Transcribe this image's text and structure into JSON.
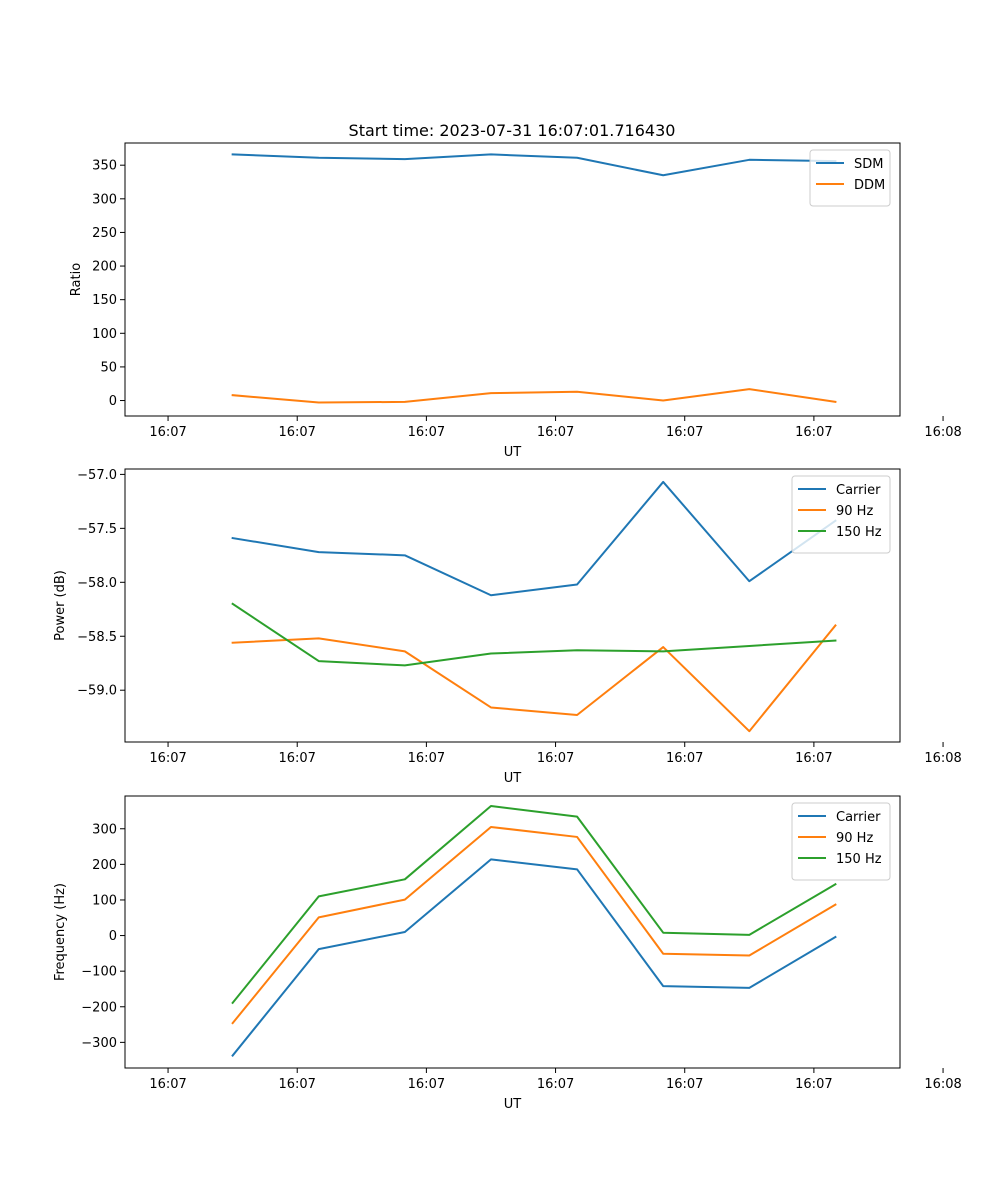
{
  "figure": {
    "title": "Start time: 2023-07-31 16:07:01.716430"
  },
  "chart_data": [
    {
      "type": "line",
      "title": "Start time: 2023-07-31 16:07:01.716430",
      "xlabel": "UT",
      "ylabel": "Ratio",
      "xlim": [
        -1,
        17
      ],
      "ylim": [
        -23,
        383
      ],
      "x": [
        1.5,
        3.5,
        5.5,
        7.5,
        9.5,
        11.5,
        13.5,
        15.5
      ],
      "xticks": [
        0,
        3,
        6,
        9,
        12,
        15,
        18
      ],
      "xtick_labels": [
        "16:07",
        "16:07",
        "16:07",
        "16:07",
        "16:07",
        "16:07",
        "16:08"
      ],
      "yticks": [
        0,
        50,
        100,
        150,
        200,
        250,
        300,
        350
      ],
      "ytick_labels": [
        "0",
        "50",
        "100",
        "150",
        "200",
        "250",
        "300",
        "350"
      ],
      "legend": "top-right",
      "series": [
        {
          "name": "SDM",
          "color": "#1f77b4",
          "values": [
            366,
            361,
            359,
            366,
            361,
            335,
            358,
            356
          ]
        },
        {
          "name": "DDM",
          "color": "#ff7f0e",
          "values": [
            8,
            -3,
            -2,
            11,
            13,
            0,
            17,
            -2
          ]
        }
      ]
    },
    {
      "type": "line",
      "xlabel": "UT",
      "ylabel": "Power (dB)",
      "xlim": [
        -1,
        17
      ],
      "ylim": [
        -59.48,
        -56.95
      ],
      "x": [
        1.5,
        3.5,
        5.5,
        7.5,
        9.5,
        11.5,
        13.5,
        15.5
      ],
      "xticks": [
        0,
        3,
        6,
        9,
        12,
        15,
        18
      ],
      "xtick_labels": [
        "16:07",
        "16:07",
        "16:07",
        "16:07",
        "16:07",
        "16:07",
        "16:08"
      ],
      "yticks": [
        -59.0,
        -58.5,
        -58.0,
        -57.5,
        -57.0
      ],
      "ytick_labels": [
        "−59.0",
        "−58.5",
        "−58.0",
        "−57.5",
        "−57.0"
      ],
      "legend": "top-right",
      "series": [
        {
          "name": "Carrier",
          "color": "#1f77b4",
          "values": [
            -57.59,
            -57.72,
            -57.75,
            -58.12,
            -58.02,
            -57.07,
            -57.99,
            -57.43
          ]
        },
        {
          "name": "90 Hz",
          "color": "#ff7f0e",
          "values": [
            -58.56,
            -58.52,
            -58.64,
            -59.16,
            -59.23,
            -58.6,
            -59.38,
            -58.4
          ]
        },
        {
          "name": "150 Hz",
          "color": "#2ca02c",
          "values": [
            -58.2,
            -58.73,
            -58.77,
            -58.66,
            -58.63,
            -58.64,
            -58.59,
            -58.54
          ]
        }
      ]
    },
    {
      "type": "line",
      "xlabel": "UT",
      "ylabel": "Frequency (Hz)",
      "xlim": [
        -1,
        17
      ],
      "ylim": [
        -372,
        392
      ],
      "x": [
        1.5,
        3.5,
        5.5,
        7.5,
        9.5,
        11.5,
        13.5,
        15.5
      ],
      "xticks": [
        0,
        3,
        6,
        9,
        12,
        15,
        18
      ],
      "xtick_labels": [
        "16:07",
        "16:07",
        "16:07",
        "16:07",
        "16:07",
        "16:07",
        "16:08"
      ],
      "yticks": [
        -300,
        -200,
        -100,
        0,
        100,
        200,
        300
      ],
      "ytick_labels": [
        "−300",
        "−200",
        "−100",
        "0",
        "100",
        "200",
        "300"
      ],
      "legend": "top-right",
      "series": [
        {
          "name": "Carrier",
          "color": "#1f77b4",
          "values": [
            -337,
            -38,
            10,
            214,
            186,
            -142,
            -147,
            -4
          ]
        },
        {
          "name": "90 Hz",
          "color": "#ff7f0e",
          "values": [
            -246,
            51,
            101,
            305,
            277,
            -51,
            -56,
            87
          ]
        },
        {
          "name": "150 Hz",
          "color": "#2ca02c",
          "values": [
            -189,
            110,
            158,
            364,
            334,
            8,
            2,
            144
          ]
        }
      ]
    }
  ]
}
